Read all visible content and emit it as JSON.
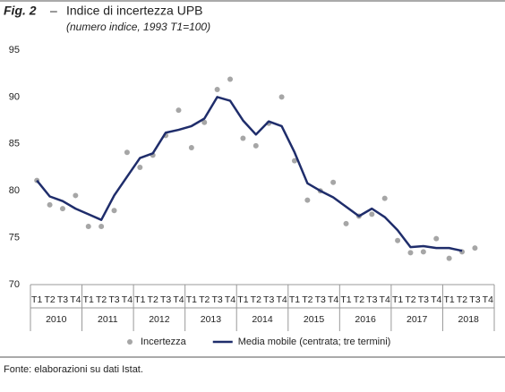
{
  "chart_data": {
    "type": "line",
    "fig_label": "Fig. 2",
    "separator": "–",
    "title": "Indice di incertezza UPB",
    "subtitle": "(numero indice, 1993 T1=100)",
    "categories": [
      "T1",
      "T2",
      "T3",
      "T4",
      "T1",
      "T2",
      "T3",
      "T4",
      "T1",
      "T2",
      "T3",
      "T4",
      "T1",
      "T2",
      "T3",
      "T4",
      "T1",
      "T2",
      "T3",
      "T4",
      "T1",
      "T2",
      "T3",
      "T4",
      "T1",
      "T2",
      "T3",
      "T4",
      "T1",
      "T2",
      "T3",
      "T4",
      "T1",
      "T2",
      "T3",
      "T4"
    ],
    "year_groups": [
      "2010",
      "2011",
      "2012",
      "2013",
      "2014",
      "2015",
      "2016",
      "2017",
      "2018"
    ],
    "series": [
      {
        "name": "Incertezza",
        "color": "#a6a6a6",
        "style": "markers",
        "values": [
          81.1,
          78.5,
          78.1,
          79.5,
          76.2,
          76.2,
          77.9,
          84.1,
          82.5,
          83.8,
          85.9,
          88.6,
          84.6,
          87.3,
          90.8,
          91.9,
          85.6,
          84.8,
          87.2,
          90.0,
          83.2,
          79.0,
          80.0,
          80.9,
          76.5,
          77.3,
          77.5,
          79.2,
          74.7,
          73.4,
          73.5,
          74.9,
          72.8,
          73.5,
          73.9,
          null
        ]
      },
      {
        "name": "Media mobile (centrata; tre termini)",
        "color": "#1f2d6b",
        "style": "line",
        "values": [
          81.1,
          79.4,
          78.9,
          78.1,
          77.5,
          76.9,
          79.5,
          81.5,
          83.5,
          84.0,
          86.2,
          86.5,
          86.9,
          87.7,
          90.0,
          89.6,
          87.5,
          86.0,
          87.4,
          86.9,
          84.1,
          80.8,
          80.0,
          79.3,
          78.3,
          77.3,
          78.1,
          77.2,
          75.8,
          74.0,
          74.1,
          73.9,
          73.9,
          73.6,
          null,
          null
        ]
      }
    ],
    "ylim": [
      70,
      95
    ],
    "yticks": [
      70,
      75,
      80,
      85,
      90,
      95
    ],
    "grid": false,
    "legend": "bottom"
  },
  "footer": {
    "source": "Fonte: elaborazioni su dati Istat."
  }
}
